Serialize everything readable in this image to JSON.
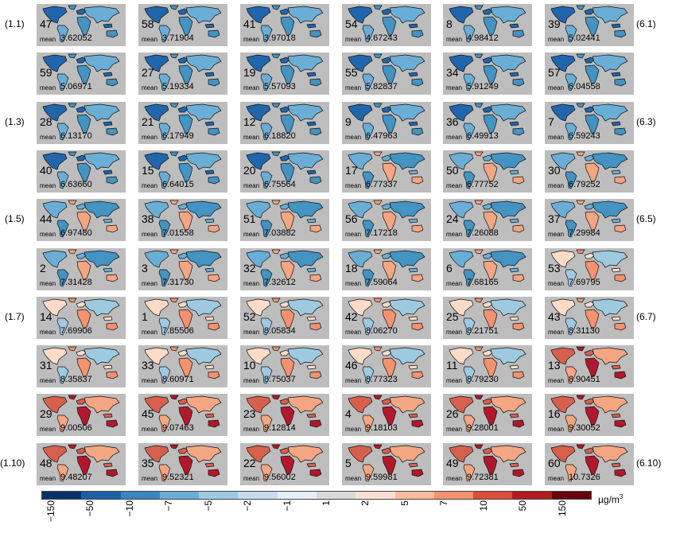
{
  "row_labels": [
    {
      "left": "(1.1)",
      "right": "(6.1)"
    },
    {
      "left": "",
      "right": ""
    },
    {
      "left": "(1.3)",
      "right": "(6.3)"
    },
    {
      "left": "",
      "right": ""
    },
    {
      "left": "(1.5)",
      "right": "(6.5)"
    },
    {
      "left": "",
      "right": ""
    },
    {
      "left": "(1.7)",
      "right": "(6.7)"
    },
    {
      "left": "",
      "right": ""
    },
    {
      "left": "",
      "right": ""
    },
    {
      "left": "(1.10)",
      "right": "(6.10)"
    }
  ],
  "mean_label": "mean",
  "panels": [
    [
      {
        "n": "47",
        "mean": "3.62052"
      },
      {
        "n": "58",
        "mean": "3.71904"
      },
      {
        "n": "41",
        "mean": "3.97018"
      },
      {
        "n": "54",
        "mean": "4.67243"
      },
      {
        "n": "8",
        "mean": "4.98412"
      },
      {
        "n": "39",
        "mean": "5.02441"
      }
    ],
    [
      {
        "n": "59",
        "mean": "5.06971"
      },
      {
        "n": "27",
        "mean": "5.19334"
      },
      {
        "n": "19",
        "mean": "5.57093"
      },
      {
        "n": "55",
        "mean": "5.82837"
      },
      {
        "n": "34",
        "mean": "5.91249"
      },
      {
        "n": "57",
        "mean": "6.04558"
      }
    ],
    [
      {
        "n": "28",
        "mean": "6.13170"
      },
      {
        "n": "21",
        "mean": "6.17949"
      },
      {
        "n": "12",
        "mean": "6.18820"
      },
      {
        "n": "9",
        "mean": "6.47963"
      },
      {
        "n": "36",
        "mean": "6.49913"
      },
      {
        "n": "7",
        "mean": "6.59243"
      }
    ],
    [
      {
        "n": "40",
        "mean": "6.63660"
      },
      {
        "n": "15",
        "mean": "6.64015"
      },
      {
        "n": "20",
        "mean": "6.75564"
      },
      {
        "n": "17",
        "mean": "6.77337"
      },
      {
        "n": "50",
        "mean": "6.77752"
      },
      {
        "n": "30",
        "mean": "6.79252"
      }
    ],
    [
      {
        "n": "44",
        "mean": "6.97480"
      },
      {
        "n": "38",
        "mean": "7.01558"
      },
      {
        "n": "51",
        "mean": "7.03882"
      },
      {
        "n": "56",
        "mean": "7.17218"
      },
      {
        "n": "24",
        "mean": "7.26088"
      },
      {
        "n": "37",
        "mean": "7.29984"
      }
    ],
    [
      {
        "n": "2",
        "mean": "7.31428"
      },
      {
        "n": "3",
        "mean": "7.31730"
      },
      {
        "n": "32",
        "mean": "7.32612"
      },
      {
        "n": "18",
        "mean": "7.59064"
      },
      {
        "n": "6",
        "mean": "7.68165"
      },
      {
        "n": "53",
        "mean": "7.69795"
      }
    ],
    [
      {
        "n": "14",
        "mean": "7.69906"
      },
      {
        "n": "1",
        "mean": "7.85506"
      },
      {
        "n": "52",
        "mean": "8.05834"
      },
      {
        "n": "42",
        "mean": "8.06270"
      },
      {
        "n": "25",
        "mean": "8.21751"
      },
      {
        "n": "43",
        "mean": "8.31130"
      }
    ],
    [
      {
        "n": "31",
        "mean": "8.35837"
      },
      {
        "n": "33",
        "mean": "8.60971"
      },
      {
        "n": "10",
        "mean": "8.75037"
      },
      {
        "n": "46",
        "mean": "8.77323"
      },
      {
        "n": "11",
        "mean": "8.79230"
      },
      {
        "n": "13",
        "mean": "8.90451"
      }
    ],
    [
      {
        "n": "29",
        "mean": "9.00506"
      },
      {
        "n": "45",
        "mean": "9.07463"
      },
      {
        "n": "23",
        "mean": "9.12814"
      },
      {
        "n": "4",
        "mean": "9.18103"
      },
      {
        "n": "26",
        "mean": "9.28001"
      },
      {
        "n": "16",
        "mean": "9.30052"
      }
    ],
    [
      {
        "n": "48",
        "mean": "9.48207"
      },
      {
        "n": "35",
        "mean": "9.52321"
      },
      {
        "n": "22",
        "mean": "9.56002"
      },
      {
        "n": "5",
        "mean": "9.59981"
      },
      {
        "n": "49",
        "mean": "9.72381"
      },
      {
        "n": "60",
        "mean": "10.7326"
      }
    ]
  ],
  "colorbar": {
    "ticks": [
      "−150",
      "−50",
      "−10",
      "−7",
      "−5",
      "−2",
      "−1",
      "1",
      "2",
      "5",
      "7",
      "10",
      "50",
      "150"
    ],
    "colors": [
      "#08306b",
      "#1d5fa5",
      "#3a86c5",
      "#6aaed6",
      "#9ecae1",
      "#c6dbef",
      "#e6eef6",
      "#d9d9d9",
      "#fde0d2",
      "#fcbba1",
      "#f4916f",
      "#dc4d3a",
      "#b01c22",
      "#67000d"
    ],
    "unit": "µg/m",
    "unit_exp": "3"
  }
}
